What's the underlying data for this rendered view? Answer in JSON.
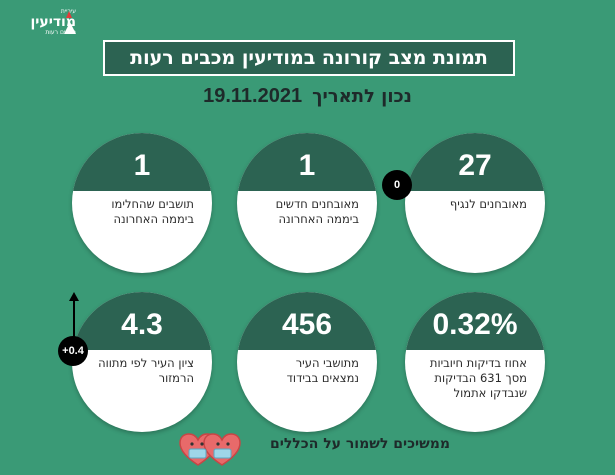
{
  "logo": {
    "top_text": "עיריית",
    "main_text": "מודיעין",
    "sub_text": "מכבים רעות"
  },
  "title": "תמונת מצב קורונה במודיעין מכבים רעות",
  "date_prefix": "נכון לתאריך",
  "date": "19.11.2021",
  "cards": [
    {
      "value": "27",
      "label": "מאובחנים לנגיף",
      "badge": "0"
    },
    {
      "value": "1",
      "label": "מאובחנים חדשים ביממה האחרונה"
    },
    {
      "value": "1",
      "label": "תושבים שהחלימו ביממה האחרונה"
    },
    {
      "value": "0.32%",
      "label": "אחוז בדיקות חיוביות מסך 631 הבדיקות שנבדקו אתמול"
    },
    {
      "value": "456",
      "label": "מתושבי העיר נמצאים בבידוד"
    },
    {
      "value": "4.3",
      "label": "ציון העיר לפי מתווה הרמזור",
      "badge": "+0.4"
    }
  ],
  "footer": "ממשיכים לשמור על הכללים",
  "colors": {
    "background": "#3a9a76",
    "header": "#2c6352",
    "heart": "#e86a6a"
  },
  "icons": [
    "hearts-with-masks-icon",
    "up-arrow-icon"
  ]
}
